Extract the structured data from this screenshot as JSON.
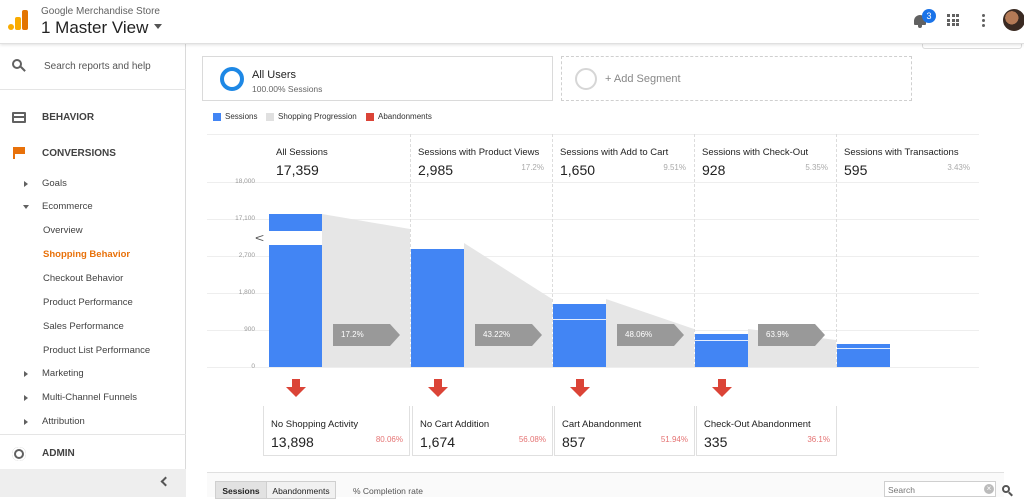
{
  "header": {
    "account": "Google Merchandise Store",
    "view": "1 Master View",
    "notification_count": "3"
  },
  "sidebar": {
    "search_placeholder": "Search reports and help",
    "sections": {
      "behavior": "BEHAVIOR",
      "conversions": "CONVERSIONS",
      "admin": "ADMIN"
    },
    "items": [
      {
        "label": "Goals"
      },
      {
        "label": "Ecommerce"
      },
      {
        "label": "Overview"
      },
      {
        "label": "Shopping Behavior"
      },
      {
        "label": "Checkout Behavior"
      },
      {
        "label": "Product Performance"
      },
      {
        "label": "Sales Performance"
      },
      {
        "label": "Product List Performance"
      },
      {
        "label": "Marketing"
      },
      {
        "label": "Multi-Channel Funnels"
      },
      {
        "label": "Attribution"
      }
    ]
  },
  "segment": {
    "name": "All Users",
    "subtitle": "100.00% Sessions",
    "add_label": "+ Add Segment"
  },
  "legend": {
    "sessions": "Sessions",
    "progression": "Shopping Progression",
    "abandonments": "Abandonments"
  },
  "colors": {
    "sessions": "#4285f4",
    "progression": "#e0e0e0",
    "abandonments": "#db4437",
    "active_nav": "#e8710a"
  },
  "funnel": {
    "y_ticks": [
      "18,000",
      "17,100",
      "2,700",
      "1,800",
      "900",
      "0"
    ],
    "stages": [
      {
        "name": "All Sessions",
        "count": "17,359",
        "pct": ""
      },
      {
        "name": "Sessions with Product Views",
        "count": "2,985",
        "pct": "17.2%"
      },
      {
        "name": "Sessions with Add to Cart",
        "count": "1,650",
        "pct": "9.51%"
      },
      {
        "name": "Sessions with Check-Out",
        "count": "928",
        "pct": "5.35%"
      },
      {
        "name": "Sessions with Transactions",
        "count": "595",
        "pct": "3.43%"
      }
    ],
    "progression": [
      "17.2%",
      "43.22%",
      "48.06%",
      "63.9%"
    ],
    "abandonments": [
      {
        "name": "No Shopping Activity",
        "count": "13,898",
        "pct": "80.06%"
      },
      {
        "name": "No Cart Addition",
        "count": "1,674",
        "pct": "56.08%"
      },
      {
        "name": "Cart Abandonment",
        "count": "857",
        "pct": "51.94%"
      },
      {
        "name": "Check-Out Abandonment",
        "count": "335",
        "pct": "36.1%"
      }
    ]
  },
  "bottom": {
    "tab_sessions": "Sessions",
    "tab_abandonments": "Abandonments",
    "completion": "% Completion rate",
    "search_placeholder": "Search"
  }
}
